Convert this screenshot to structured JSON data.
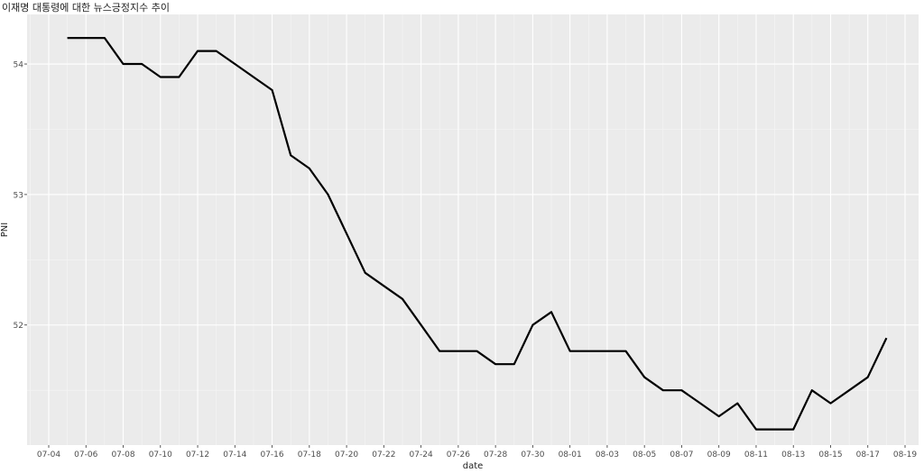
{
  "chart_data": {
    "type": "line",
    "title": "이재명 대통령에 대한 뉴스긍정지수 추이",
    "xlabel": "date",
    "ylabel": "PNI",
    "x_tick_labels": [
      "07-04",
      "07-06",
      "07-08",
      "07-10",
      "07-12",
      "07-14",
      "07-16",
      "07-18",
      "07-20",
      "07-22",
      "07-24",
      "07-26",
      "07-28",
      "07-30",
      "08-01",
      "08-03",
      "08-05",
      "08-07",
      "08-09",
      "08-11",
      "08-13",
      "08-15",
      "08-17",
      "08-19"
    ],
    "y_ticks": [
      52,
      53,
      54
    ],
    "ylim": [
      51.08,
      54.38
    ],
    "grid": true,
    "series": [
      {
        "color": "#000000",
        "x": [
          "07-05",
          "07-06",
          "07-07",
          "07-08",
          "07-09",
          "07-10",
          "07-11",
          "07-12",
          "07-13",
          "07-14",
          "07-15",
          "07-16",
          "07-17",
          "07-18",
          "07-19",
          "07-20",
          "07-21",
          "07-22",
          "07-23",
          "07-24",
          "07-25",
          "07-26",
          "07-27",
          "07-28",
          "07-29",
          "07-30",
          "07-31",
          "08-01",
          "08-02",
          "08-03",
          "08-04",
          "08-05",
          "08-06",
          "08-07",
          "08-08",
          "08-09",
          "08-10",
          "08-11",
          "08-12",
          "08-13",
          "08-14",
          "08-15",
          "08-16",
          "08-17",
          "08-18"
        ],
        "values": [
          54.2,
          54.2,
          54.2,
          54.0,
          54.0,
          53.9,
          53.9,
          54.1,
          54.1,
          54.0,
          53.9,
          53.8,
          53.3,
          53.2,
          53.0,
          52.7,
          52.4,
          52.3,
          52.2,
          52.0,
          51.8,
          51.8,
          51.8,
          51.7,
          51.7,
          52.0,
          52.1,
          51.8,
          51.8,
          51.8,
          51.8,
          51.6,
          51.5,
          51.5,
          51.4,
          51.3,
          51.4,
          51.2,
          51.2,
          51.2,
          51.5,
          51.4,
          51.5,
          51.6,
          51.9
        ]
      }
    ]
  }
}
